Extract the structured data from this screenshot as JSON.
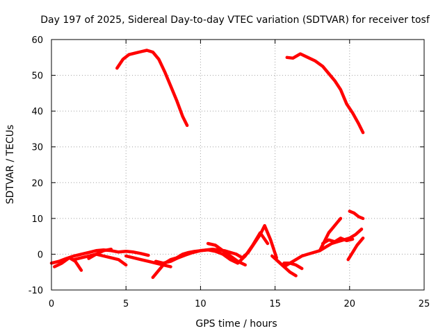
{
  "chart_data": {
    "type": "line",
    "title": "Day 197 of 2025, Sidereal Day-to-day VTEC variation (SDTVAR) for receiver tosf",
    "xlabel": "GPS time / hours",
    "ylabel": "SDTVAR / TECUs",
    "xlim": [
      0,
      25
    ],
    "ylim": [
      -10,
      60
    ],
    "xticks": [
      0,
      5,
      10,
      15,
      20,
      25
    ],
    "yticks": [
      -10,
      0,
      10,
      20,
      30,
      40,
      50,
      60
    ],
    "grid": true,
    "series_color": "#ff0000",
    "series": [
      {
        "name": "arc-high-1",
        "x": [
          4.4,
          4.8,
          5.2,
          5.6,
          6.0,
          6.4,
          6.8,
          7.2,
          7.6,
          8.0,
          8.4,
          8.8,
          9.1
        ],
        "y": [
          52,
          54.5,
          55.8,
          56.2,
          56.6,
          57.0,
          56.5,
          54.5,
          51.0,
          47.0,
          43.0,
          38.5,
          36.0
        ]
      },
      {
        "name": "arc-high-2",
        "x": [
          15.8,
          16.2,
          16.7,
          17.2,
          17.7,
          18.2,
          18.6,
          19.0,
          19.4,
          19.8,
          20.2,
          20.6,
          20.9
        ],
        "y": [
          55,
          54.8,
          56.0,
          55.0,
          54.0,
          52.5,
          50.5,
          48.5,
          46.0,
          42.0,
          39.5,
          36.5,
          34.0
        ]
      },
      {
        "name": "arc-low-1",
        "x": [
          0.0,
          0.5,
          1.0,
          1.5,
          2.0,
          2.5,
          3.0,
          3.5,
          4.0,
          4.5,
          5.0,
          5.5,
          6.0,
          6.5
        ],
        "y": [
          -2.5,
          -2.0,
          -1.2,
          -0.5,
          0.0,
          0.5,
          1.0,
          1.2,
          1.0,
          0.6,
          0.8,
          0.6,
          0.2,
          -0.3
        ]
      },
      {
        "name": "arc-low-2",
        "x": [
          0.2,
          0.7,
          1.2,
          1.6,
          2.0
        ],
        "y": [
          -3.5,
          -2.5,
          -1.0,
          -2.0,
          -4.5
        ]
      },
      {
        "name": "arc-low-3",
        "x": [
          1.5,
          2.0,
          2.5,
          3.0,
          3.5,
          4.0,
          4.5,
          5.0
        ],
        "y": [
          -1.5,
          -1.0,
          -0.5,
          0.0,
          -0.5,
          -1.0,
          -1.5,
          -3.0
        ]
      },
      {
        "name": "arc-low-4",
        "x": [
          2.5,
          3.0,
          3.5,
          4.0
        ],
        "y": [
          -1.2,
          0.0,
          1.0,
          1.4
        ]
      },
      {
        "name": "arc-low-5",
        "x": [
          5.0,
          5.5,
          6.0,
          6.5,
          7.0,
          7.5,
          8.0
        ],
        "y": [
          -0.5,
          -1.0,
          -1.5,
          -2.0,
          -2.5,
          -3.0,
          -3.5
        ]
      },
      {
        "name": "arc-low-6",
        "x": [
          6.8,
          7.2,
          7.6,
          8.0,
          8.4,
          8.8,
          9.2,
          9.6,
          10.0,
          10.4,
          10.8,
          11.2,
          11.6,
          12.0,
          12.4,
          12.8,
          13.2,
          13.6,
          14.0,
          14.3,
          14.7,
          15.1
        ],
        "y": [
          -6.5,
          -4.5,
          -2.5,
          -1.5,
          -1.0,
          0.0,
          0.5,
          0.8,
          1.0,
          1.2,
          1.4,
          1.2,
          1.0,
          0.5,
          0.0,
          -1.0,
          0.5,
          3.0,
          5.5,
          8.0,
          4.0,
          -1.0
        ]
      },
      {
        "name": "arc-low-7",
        "x": [
          7.0,
          7.5,
          8.0,
          8.5,
          9.0,
          9.5,
          10.0,
          10.5,
          11.0,
          11.5,
          12.0,
          12.5,
          13.0,
          13.5,
          14.0,
          14.5
        ],
        "y": [
          -2.0,
          -2.5,
          -2.0,
          -1.0,
          -0.2,
          0.5,
          1.0,
          1.2,
          0.8,
          0.0,
          -1.5,
          -2.5,
          -0.5,
          2.5,
          6.0,
          3.0
        ]
      },
      {
        "name": "arc-low-8",
        "x": [
          10.5,
          11.0,
          11.5,
          12.0,
          12.5,
          13.0
        ],
        "y": [
          3.0,
          2.5,
          1.0,
          -0.5,
          -2.0,
          -3.0
        ]
      },
      {
        "name": "arc-low-9",
        "x": [
          14.8,
          15.2,
          15.6,
          16.0,
          16.4,
          16.8,
          17.2,
          17.6,
          18.0,
          18.4,
          18.8,
          19.2,
          19.6,
          20.0,
          20.4,
          20.8
        ],
        "y": [
          -0.5,
          -2.0,
          -3.5,
          -2.5,
          -1.5,
          -0.5,
          0.0,
          0.5,
          1.0,
          2.0,
          3.0,
          3.5,
          4.0,
          4.5,
          5.5,
          7.0
        ]
      },
      {
        "name": "arc-low-10",
        "x": [
          15.2,
          15.6,
          16.0,
          16.4
        ],
        "y": [
          -2.0,
          -3.5,
          -5.0,
          -6.0
        ]
      },
      {
        "name": "arc-low-11",
        "x": [
          15.6,
          16.0,
          16.4,
          16.8
        ],
        "y": [
          -2.5,
          -2.5,
          -3.0,
          -4.0
        ]
      },
      {
        "name": "arc-low-12",
        "x": [
          18.0,
          18.3,
          18.6,
          18.9,
          19.2,
          19.4
        ],
        "y": [
          1.0,
          3.5,
          6.0,
          7.5,
          9.0,
          10.0
        ]
      },
      {
        "name": "arc-low-13",
        "x": [
          18.2,
          18.6,
          19.0,
          19.4,
          19.8,
          20.2
        ],
        "y": [
          3.0,
          4.0,
          3.5,
          4.5,
          3.8,
          4.2
        ]
      },
      {
        "name": "arc-low-14",
        "x": [
          20.0,
          20.3,
          20.6,
          20.9
        ],
        "y": [
          12.0,
          11.5,
          10.5,
          10.0
        ]
      },
      {
        "name": "arc-low-15",
        "x": [
          19.9,
          20.2,
          20.5,
          20.9
        ],
        "y": [
          -1.5,
          0.5,
          2.5,
          4.5
        ]
      }
    ]
  }
}
